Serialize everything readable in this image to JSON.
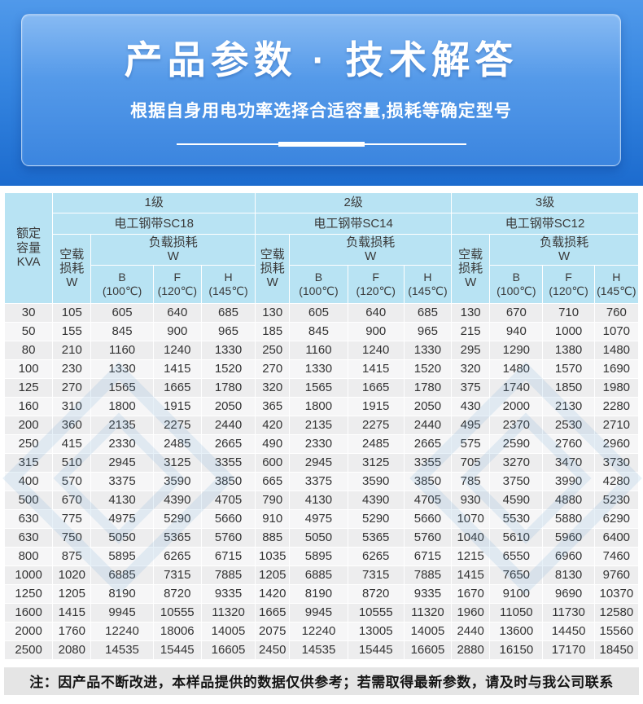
{
  "header": {
    "title": "产品参数 · 技术解答",
    "subtitle": "根据自身用电功率选择合适容量,损耗等确定型号"
  },
  "table": {
    "rated_capacity_label": "额定\n容量\nKVA",
    "no_load_label": "空载\n损耗\nW",
    "load_label": "负载损耗\nW",
    "sub_columns": [
      "B\n(100℃)",
      "F\n(120℃)",
      "H\n(145℃)"
    ],
    "groups": [
      {
        "level": "1级",
        "steel": "电工钢带SC18"
      },
      {
        "level": "2级",
        "steel": "电工钢带SC14"
      },
      {
        "level": "3级",
        "steel": "电工钢带SC12"
      }
    ],
    "rows": [
      {
        "kva": "30",
        "values": [
          105,
          605,
          640,
          685,
          130,
          605,
          640,
          685,
          130,
          670,
          710,
          760
        ]
      },
      {
        "kva": "50",
        "values": [
          155,
          845,
          900,
          965,
          185,
          845,
          900,
          965,
          215,
          940,
          1000,
          1070
        ]
      },
      {
        "kva": "80",
        "values": [
          210,
          1160,
          1240,
          1330,
          250,
          1160,
          1240,
          1330,
          295,
          1290,
          1380,
          1480
        ]
      },
      {
        "kva": "100",
        "values": [
          230,
          1330,
          1415,
          1520,
          270,
          1330,
          1415,
          1520,
          320,
          1480,
          1570,
          1690
        ]
      },
      {
        "kva": "125",
        "values": [
          270,
          1565,
          1665,
          1780,
          320,
          1565,
          1665,
          1780,
          375,
          1740,
          1850,
          1980
        ]
      },
      {
        "kva": "160",
        "values": [
          310,
          1800,
          1915,
          2050,
          365,
          1800,
          1915,
          2050,
          430,
          2000,
          2130,
          2280
        ]
      },
      {
        "kva": "200",
        "values": [
          360,
          2135,
          2275,
          2440,
          420,
          2135,
          2275,
          2440,
          495,
          2370,
          2530,
          2710
        ]
      },
      {
        "kva": "250",
        "values": [
          415,
          2330,
          2485,
          2665,
          490,
          2330,
          2485,
          2665,
          575,
          2590,
          2760,
          2960
        ]
      },
      {
        "kva": "315",
        "values": [
          510,
          2945,
          3125,
          3355,
          600,
          2945,
          3125,
          3355,
          705,
          3270,
          3470,
          3730
        ]
      },
      {
        "kva": "400",
        "values": [
          570,
          3375,
          3590,
          3850,
          665,
          3375,
          3590,
          3850,
          785,
          3750,
          3990,
          4280
        ]
      },
      {
        "kva": "500",
        "values": [
          670,
          4130,
          4390,
          4705,
          790,
          4130,
          4390,
          4705,
          930,
          4590,
          4880,
          5230
        ]
      },
      {
        "kva": "630",
        "values": [
          775,
          4975,
          5290,
          5660,
          910,
          4975,
          5290,
          5660,
          1070,
          5530,
          5880,
          6290
        ]
      },
      {
        "kva": "630",
        "values": [
          750,
          5050,
          5365,
          5760,
          885,
          5050,
          5365,
          5760,
          1040,
          5610,
          5960,
          6400
        ]
      },
      {
        "kva": "800",
        "values": [
          875,
          5895,
          6265,
          6715,
          1035,
          5895,
          6265,
          6715,
          1215,
          6550,
          6960,
          7460
        ]
      },
      {
        "kva": "1000",
        "values": [
          1020,
          6885,
          7315,
          7885,
          1205,
          6885,
          7315,
          7885,
          1415,
          7650,
          8130,
          9760
        ]
      },
      {
        "kva": "1250",
        "values": [
          1205,
          8190,
          8720,
          9335,
          1420,
          8190,
          8720,
          9335,
          1670,
          9100,
          9690,
          10370
        ]
      },
      {
        "kva": "1600",
        "values": [
          1415,
          9945,
          10555,
          11320,
          1665,
          9945,
          10555,
          11320,
          1960,
          11050,
          11730,
          12580
        ]
      },
      {
        "kva": "2000",
        "values": [
          1760,
          12240,
          18006,
          14005,
          2075,
          12240,
          13005,
          14005,
          2440,
          13600,
          14450,
          15560
        ]
      },
      {
        "kva": "2500",
        "values": [
          2080,
          14535,
          15445,
          16605,
          2450,
          14535,
          15445,
          16605,
          2880,
          16150,
          17170,
          18450
        ]
      }
    ]
  },
  "note": "注：因产品不断改进，本样品提供的数据仅供参考；若需取得最新参数，请及时与我公司联系",
  "colors": {
    "banner_top": "#5099ea",
    "banner_bottom": "#1c6bce",
    "panel_top": "#87baf3",
    "table_header_bg": "#b8e3f3",
    "row_odd": "#ededee",
    "row_even": "#f6f6f7",
    "note_bg": "#e5e5e5"
  }
}
